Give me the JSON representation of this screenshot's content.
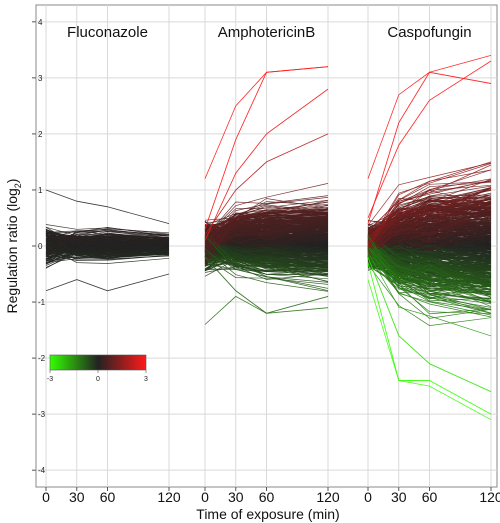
{
  "chart_data": {
    "type": "line",
    "panels": [
      "Fluconazole",
      "AmphotericinB",
      "Caspofungin"
    ],
    "x": [
      0,
      30,
      60,
      120
    ],
    "x_tick_labels": [
      "0",
      "30",
      "60",
      "120"
    ],
    "xlabel": "Time of exposure (min)",
    "ylabel": "Regulation ratio (log",
    "ylabel_sub": "2",
    "ylabel_end": ")",
    "ylim": [
      -4.3,
      4.3
    ],
    "y_ticks": [
      4,
      3,
      2,
      1,
      0,
      -1,
      -2,
      -3,
      -4
    ],
    "y_tick_labels": [
      "4",
      "3",
      "2",
      "1",
      "0",
      "-1",
      "-2",
      "-3",
      "-4"
    ],
    "grid": true,
    "colorscale": {
      "min": -3,
      "mid": 0,
      "max": 3,
      "min_label": "-3",
      "mid_label": "0",
      "max_label": "3",
      "low_color": "#33ff00",
      "mid_color": "#222222",
      "high_color": "#ff1a1a"
    },
    "summary_envelopes": [
      {
        "panel": "Fluconazole",
        "max": [
          1.0,
          0.8,
          0.7,
          0.4
        ],
        "min": [
          -0.8,
          -0.6,
          -0.8,
          -0.5
        ]
      },
      {
        "panel": "AmphotericinB",
        "max": [
          1.2,
          2.5,
          3.1,
          3.2
        ],
        "min": [
          -1.4,
          -0.9,
          -1.2,
          -1.1
        ]
      },
      {
        "panel": "Caspofungin",
        "max": [
          1.2,
          2.7,
          3.1,
          3.4
        ],
        "min": [
          -0.6,
          -2.4,
          -2.5,
          -3.1
        ]
      }
    ],
    "example_series": [
      {
        "panel": "AmphotericinB",
        "values": [
          0.3,
          1.9,
          3.1,
          3.2
        ]
      },
      {
        "panel": "AmphotericinB",
        "values": [
          0.1,
          1.3,
          2.0,
          2.8
        ]
      },
      {
        "panel": "AmphotericinB",
        "values": [
          0.2,
          1.0,
          1.5,
          2.0
        ]
      },
      {
        "panel": "AmphotericinB",
        "values": [
          -0.2,
          -0.8,
          -1.2,
          -0.9
        ]
      },
      {
        "panel": "Caspofungin",
        "values": [
          0.4,
          2.2,
          3.1,
          2.9
        ]
      },
      {
        "panel": "Caspofungin",
        "values": [
          0.5,
          1.8,
          2.6,
          3.3
        ]
      },
      {
        "panel": "Caspofungin",
        "values": [
          -0.3,
          -2.4,
          -2.4,
          -3.0
        ]
      },
      {
        "panel": "Caspofungin",
        "values": [
          -0.2,
          -1.6,
          -2.1,
          -2.6
        ]
      }
    ]
  }
}
